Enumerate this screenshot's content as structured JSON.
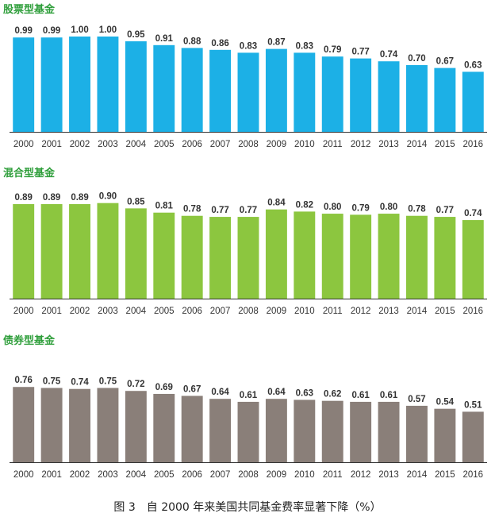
{
  "caption": "图 3　自 2000 年来美国共同基金费率显著下降（%）",
  "colors": {
    "equity": "#1cb0e6",
    "hybrid": "#8cc63f",
    "bond": "#8a7f79",
    "title_green": "#2e9e3a",
    "value_label": "#333333",
    "axis": "#333333"
  },
  "chart_data": [
    {
      "type": "bar",
      "title": "股票型基金",
      "color": "#1cb0e6",
      "categories": [
        "2000",
        "2001",
        "2002",
        "2003",
        "2004",
        "2005",
        "2006",
        "2007",
        "2008",
        "2009",
        "2010",
        "2011",
        "2012",
        "2013",
        "2014",
        "2015",
        "2016"
      ],
      "values": [
        0.99,
        0.99,
        1.0,
        1.0,
        0.95,
        0.91,
        0.88,
        0.86,
        0.83,
        0.87,
        0.83,
        0.79,
        0.77,
        0.74,
        0.7,
        0.67,
        0.63
      ],
      "value_labels": [
        "0.99",
        "0.99",
        "1.00",
        "1.00",
        "0.95",
        "0.91",
        "0.88",
        "0.86",
        "0.83",
        "0.87",
        "0.83",
        "0.79",
        "0.77",
        "0.74",
        "0.70",
        "0.67",
        "0.63"
      ],
      "ylim": [
        0,
        1.05
      ],
      "grid": false
    },
    {
      "type": "bar",
      "title": "混合型基金",
      "color": "#8cc63f",
      "categories": [
        "2000",
        "2001",
        "2002",
        "2003",
        "2004",
        "2005",
        "2006",
        "2007",
        "2008",
        "2009",
        "2010",
        "2011",
        "2012",
        "2013",
        "2014",
        "2015",
        "2016"
      ],
      "values": [
        0.89,
        0.89,
        0.89,
        0.9,
        0.85,
        0.81,
        0.78,
        0.77,
        0.77,
        0.84,
        0.82,
        0.8,
        0.79,
        0.8,
        0.78,
        0.77,
        0.74
      ],
      "value_labels": [
        "0.89",
        "0.89",
        "0.89",
        "0.90",
        "0.85",
        "0.81",
        "0.78",
        "0.77",
        "0.77",
        "0.84",
        "0.82",
        "0.80",
        "0.79",
        "0.80",
        "0.78",
        "0.77",
        "0.74"
      ],
      "ylim": [
        0,
        0.95
      ],
      "grid": false
    },
    {
      "type": "bar",
      "title": "债券型基金",
      "color": "#8a7f79",
      "categories": [
        "2000",
        "2001",
        "2002",
        "2003",
        "2004",
        "2005",
        "2006",
        "2007",
        "2008",
        "2009",
        "2010",
        "2011",
        "2012",
        "2013",
        "2014",
        "2015",
        "2016"
      ],
      "values": [
        0.76,
        0.75,
        0.74,
        0.75,
        0.72,
        0.69,
        0.67,
        0.64,
        0.61,
        0.64,
        0.63,
        0.62,
        0.61,
        0.61,
        0.57,
        0.54,
        0.51
      ],
      "value_labels": [
        "0.76",
        "0.75",
        "0.74",
        "0.75",
        "0.72",
        "0.69",
        "0.67",
        "0.64",
        "0.61",
        "0.64",
        "0.63",
        "0.62",
        "0.61",
        "0.61",
        "0.57",
        "0.54",
        "0.51"
      ],
      "ylim": [
        0,
        0.81
      ],
      "grid": false
    }
  ]
}
